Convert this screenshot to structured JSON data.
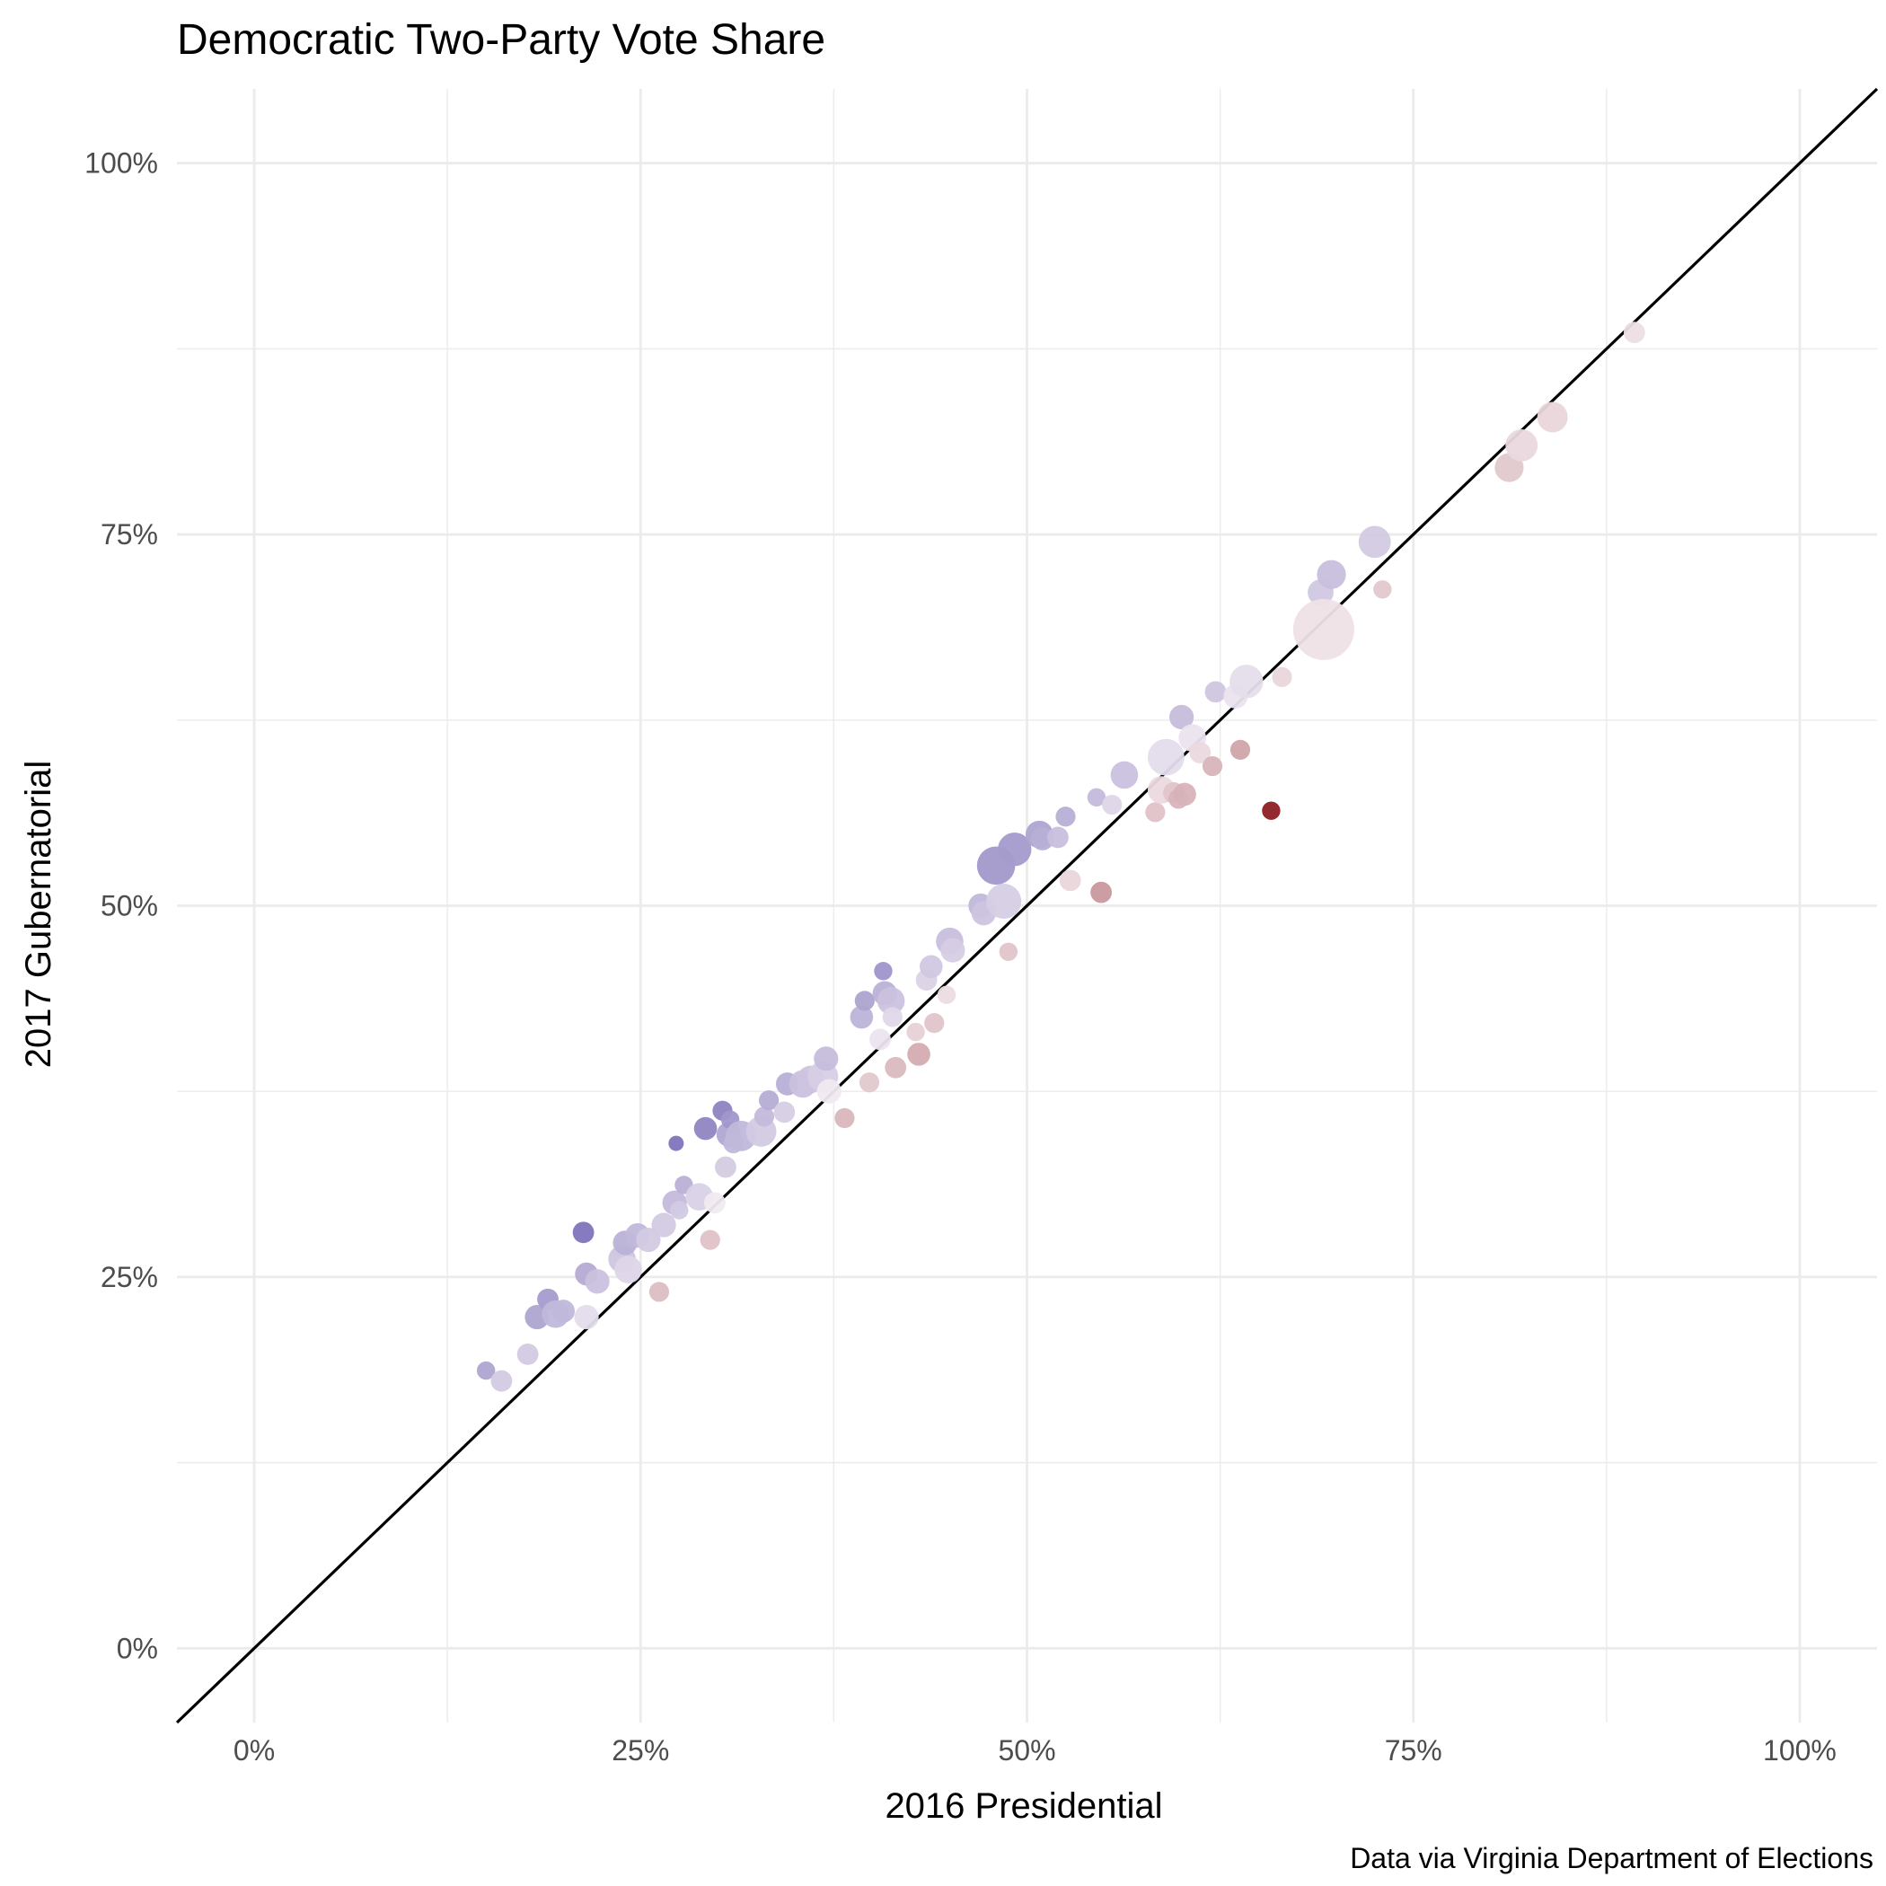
{
  "chart_data": {
    "type": "scatter",
    "title": "Democratic Two-Party Vote Share",
    "xlabel": "2016 Presidential",
    "ylabel": "2017 Gubernatorial",
    "caption": "Data via Virginia Department of Elections",
    "xlim": [
      -0.05,
      1.05
    ],
    "ylim": [
      -0.05,
      1.05
    ],
    "x_ticks": [
      0,
      0.25,
      0.5,
      0.75,
      1.0
    ],
    "x_tick_labels": [
      "0%",
      "25%",
      "50%",
      "75%",
      "100%"
    ],
    "y_ticks": [
      0,
      0.25,
      0.5,
      0.75,
      1.0
    ],
    "y_tick_labels": [
      "0%",
      "25%",
      "50%",
      "75%",
      "100%"
    ],
    "grid": true,
    "reference_line": "y = x",
    "point_color_scale": {
      "gain": "#7b6fb8",
      "neutral": "#f5eef3",
      "loss": "#8b1d22"
    },
    "points": [
      {
        "x": 0.15,
        "y": 0.187,
        "size": 1.2,
        "d": 0.04
      },
      {
        "x": 0.16,
        "y": 0.18,
        "size": 1.4,
        "d": 0.02
      },
      {
        "x": 0.177,
        "y": 0.198,
        "size": 1.4,
        "d": 0.02
      },
      {
        "x": 0.183,
        "y": 0.223,
        "size": 1.6,
        "d": 0.04
      },
      {
        "x": 0.19,
        "y": 0.235,
        "size": 1.4,
        "d": 0.045
      },
      {
        "x": 0.195,
        "y": 0.225,
        "size": 1.8,
        "d": 0.03
      },
      {
        "x": 0.2,
        "y": 0.227,
        "size": 1.5,
        "d": 0.03
      },
      {
        "x": 0.213,
        "y": 0.28,
        "size": 1.4,
        "d": 0.067
      },
      {
        "x": 0.215,
        "y": 0.252,
        "size": 1.5,
        "d": 0.037
      },
      {
        "x": 0.215,
        "y": 0.223,
        "size": 1.6,
        "d": 0.01
      },
      {
        "x": 0.222,
        "y": 0.247,
        "size": 1.6,
        "d": 0.025
      },
      {
        "x": 0.238,
        "y": 0.262,
        "size": 1.8,
        "d": 0.022
      },
      {
        "x": 0.24,
        "y": 0.273,
        "size": 1.6,
        "d": 0.033
      },
      {
        "x": 0.242,
        "y": 0.255,
        "size": 1.8,
        "d": 0.013
      },
      {
        "x": 0.248,
        "y": 0.278,
        "size": 1.6,
        "d": 0.03
      },
      {
        "x": 0.255,
        "y": 0.275,
        "size": 1.6,
        "d": 0.02
      },
      {
        "x": 0.262,
        "y": 0.24,
        "size": 1.3,
        "d": -0.022
      },
      {
        "x": 0.265,
        "y": 0.285,
        "size": 1.6,
        "d": 0.02
      },
      {
        "x": 0.272,
        "y": 0.3,
        "size": 1.6,
        "d": 0.028
      },
      {
        "x": 0.273,
        "y": 0.34,
        "size": 1.0,
        "d": 0.067
      },
      {
        "x": 0.275,
        "y": 0.295,
        "size": 1.2,
        "d": 0.02
      },
      {
        "x": 0.278,
        "y": 0.312,
        "size": 1.2,
        "d": 0.034
      },
      {
        "x": 0.288,
        "y": 0.304,
        "size": 1.8,
        "d": 0.016
      },
      {
        "x": 0.292,
        "y": 0.35,
        "size": 1.5,
        "d": 0.058
      },
      {
        "x": 0.295,
        "y": 0.275,
        "size": 1.3,
        "d": -0.02
      },
      {
        "x": 0.298,
        "y": 0.3,
        "size": 1.4,
        "d": 0.002
      },
      {
        "x": 0.303,
        "y": 0.362,
        "size": 1.3,
        "d": 0.059
      },
      {
        "x": 0.305,
        "y": 0.324,
        "size": 1.4,
        "d": 0.019
      },
      {
        "x": 0.307,
        "y": 0.346,
        "size": 1.6,
        "d": 0.039
      },
      {
        "x": 0.308,
        "y": 0.356,
        "size": 1.2,
        "d": 0.048
      },
      {
        "x": 0.31,
        "y": 0.34,
        "size": 1.3,
        "d": 0.03
      },
      {
        "x": 0.315,
        "y": 0.345,
        "size": 2.0,
        "d": 0.03
      },
      {
        "x": 0.328,
        "y": 0.348,
        "size": 2.0,
        "d": 0.02
      },
      {
        "x": 0.33,
        "y": 0.358,
        "size": 1.3,
        "d": 0.028
      },
      {
        "x": 0.333,
        "y": 0.369,
        "size": 1.3,
        "d": 0.036
      },
      {
        "x": 0.343,
        "y": 0.361,
        "size": 1.4,
        "d": 0.018
      },
      {
        "x": 0.345,
        "y": 0.38,
        "size": 1.5,
        "d": 0.035
      },
      {
        "x": 0.355,
        "y": 0.38,
        "size": 1.8,
        "d": 0.025
      },
      {
        "x": 0.36,
        "y": 0.383,
        "size": 1.8,
        "d": 0.023
      },
      {
        "x": 0.368,
        "y": 0.385,
        "size": 2.0,
        "d": 0.017
      },
      {
        "x": 0.37,
        "y": 0.397,
        "size": 1.6,
        "d": 0.027
      },
      {
        "x": 0.372,
        "y": 0.375,
        "size": 1.6,
        "d": 0.003
      },
      {
        "x": 0.382,
        "y": 0.357,
        "size": 1.3,
        "d": -0.025
      },
      {
        "x": 0.393,
        "y": 0.425,
        "size": 1.5,
        "d": 0.032
      },
      {
        "x": 0.395,
        "y": 0.436,
        "size": 1.3,
        "d": 0.041
      },
      {
        "x": 0.398,
        "y": 0.381,
        "size": 1.3,
        "d": -0.017
      },
      {
        "x": 0.405,
        "y": 0.41,
        "size": 1.4,
        "d": 0.005
      },
      {
        "x": 0.407,
        "y": 0.456,
        "size": 1.2,
        "d": 0.049
      },
      {
        "x": 0.408,
        "y": 0.441,
        "size": 1.6,
        "d": 0.033
      },
      {
        "x": 0.412,
        "y": 0.436,
        "size": 1.8,
        "d": 0.024
      },
      {
        "x": 0.413,
        "y": 0.425,
        "size": 1.3,
        "d": 0.012
      },
      {
        "x": 0.415,
        "y": 0.391,
        "size": 1.4,
        "d": -0.024
      },
      {
        "x": 0.428,
        "y": 0.415,
        "size": 1.2,
        "d": -0.013
      },
      {
        "x": 0.43,
        "y": 0.4,
        "size": 1.5,
        "d": -0.03
      },
      {
        "x": 0.435,
        "y": 0.45,
        "size": 1.4,
        "d": 0.015
      },
      {
        "x": 0.438,
        "y": 0.459,
        "size": 1.5,
        "d": 0.021
      },
      {
        "x": 0.44,
        "y": 0.421,
        "size": 1.3,
        "d": -0.019
      },
      {
        "x": 0.448,
        "y": 0.44,
        "size": 1.2,
        "d": -0.008
      },
      {
        "x": 0.45,
        "y": 0.476,
        "size": 1.8,
        "d": 0.026
      },
      {
        "x": 0.452,
        "y": 0.47,
        "size": 1.6,
        "d": 0.018
      },
      {
        "x": 0.47,
        "y": 0.5,
        "size": 1.6,
        "d": 0.03
      },
      {
        "x": 0.472,
        "y": 0.495,
        "size": 1.6,
        "d": 0.023
      },
      {
        "x": 0.48,
        "y": 0.527,
        "size": 2.5,
        "d": 0.047
      },
      {
        "x": 0.485,
        "y": 0.503,
        "size": 2.3,
        "d": 0.018
      },
      {
        "x": 0.488,
        "y": 0.469,
        "size": 1.2,
        "d": -0.019
      },
      {
        "x": 0.492,
        "y": 0.538,
        "size": 2.2,
        "d": 0.046
      },
      {
        "x": 0.508,
        "y": 0.548,
        "size": 1.8,
        "d": 0.04
      },
      {
        "x": 0.51,
        "y": 0.545,
        "size": 1.5,
        "d": 0.035
      },
      {
        "x": 0.52,
        "y": 0.546,
        "size": 1.4,
        "d": 0.026
      },
      {
        "x": 0.525,
        "y": 0.56,
        "size": 1.3,
        "d": 0.035
      },
      {
        "x": 0.528,
        "y": 0.517,
        "size": 1.4,
        "d": -0.011
      },
      {
        "x": 0.545,
        "y": 0.573,
        "size": 1.2,
        "d": 0.028
      },
      {
        "x": 0.548,
        "y": 0.509,
        "size": 1.4,
        "d": -0.039
      },
      {
        "x": 0.555,
        "y": 0.568,
        "size": 1.3,
        "d": 0.013
      },
      {
        "x": 0.563,
        "y": 0.588,
        "size": 1.8,
        "d": 0.025
      },
      {
        "x": 0.583,
        "y": 0.563,
        "size": 1.3,
        "d": -0.02
      },
      {
        "x": 0.587,
        "y": 0.578,
        "size": 1.8,
        "d": -0.009
      },
      {
        "x": 0.59,
        "y": 0.6,
        "size": 2.4,
        "d": 0.01
      },
      {
        "x": 0.595,
        "y": 0.576,
        "size": 1.4,
        "d": -0.019
      },
      {
        "x": 0.598,
        "y": 0.572,
        "size": 1.3,
        "d": -0.026
      },
      {
        "x": 0.6,
        "y": 0.627,
        "size": 1.6,
        "d": 0.027
      },
      {
        "x": 0.602,
        "y": 0.575,
        "size": 1.5,
        "d": -0.027
      },
      {
        "x": 0.607,
        "y": 0.613,
        "size": 1.8,
        "d": 0.006
      },
      {
        "x": 0.612,
        "y": 0.603,
        "size": 1.4,
        "d": -0.009
      },
      {
        "x": 0.62,
        "y": 0.594,
        "size": 1.3,
        "d": -0.026
      },
      {
        "x": 0.622,
        "y": 0.644,
        "size": 1.4,
        "d": 0.022
      },
      {
        "x": 0.635,
        "y": 0.641,
        "size": 1.6,
        "d": 0.006
      },
      {
        "x": 0.638,
        "y": 0.605,
        "size": 1.3,
        "d": -0.033
      },
      {
        "x": 0.642,
        "y": 0.651,
        "size": 2.2,
        "d": 0.009
      },
      {
        "x": 0.658,
        "y": 0.564,
        "size": 1.2,
        "d": -0.094
      },
      {
        "x": 0.665,
        "y": 0.654,
        "size": 1.3,
        "d": -0.011
      },
      {
        "x": 0.69,
        "y": 0.711,
        "size": 1.7,
        "d": 0.021
      },
      {
        "x": 0.692,
        "y": 0.686,
        "size": 4.0,
        "d": -0.006
      },
      {
        "x": 0.697,
        "y": 0.723,
        "size": 1.9,
        "d": 0.026
      },
      {
        "x": 0.725,
        "y": 0.745,
        "size": 2.1,
        "d": 0.02
      },
      {
        "x": 0.73,
        "y": 0.713,
        "size": 1.2,
        "d": -0.017
      },
      {
        "x": 0.812,
        "y": 0.795,
        "size": 1.9,
        "d": -0.017
      },
      {
        "x": 0.82,
        "y": 0.81,
        "size": 2.1,
        "d": -0.01
      },
      {
        "x": 0.84,
        "y": 0.829,
        "size": 2.0,
        "d": -0.011
      },
      {
        "x": 0.893,
        "y": 0.886,
        "size": 1.4,
        "d": -0.007
      }
    ]
  }
}
